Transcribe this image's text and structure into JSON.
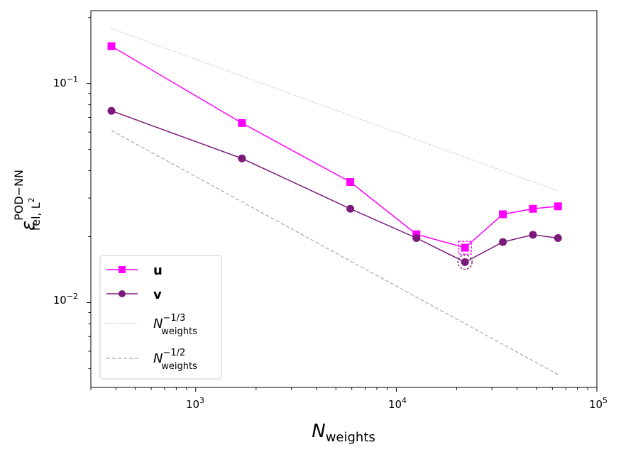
{
  "chart_data": {
    "type": "line",
    "xscale": "log",
    "yscale": "log",
    "xlim": [
      300,
      100000
    ],
    "ylim": [
      0.0041,
      0.215
    ],
    "xticks": [
      {
        "value": 1000,
        "base": "10",
        "exp": "3"
      },
      {
        "value": 10000,
        "base": "10",
        "exp": "4"
      },
      {
        "value": 100000,
        "base": "10",
        "exp": "5"
      }
    ],
    "yticks": [
      {
        "value": 0.1,
        "base": "10",
        "exp": "−1"
      },
      {
        "value": 0.01,
        "base": "10",
        "exp": "−2"
      }
    ],
    "xlabel": {
      "main": "N",
      "sub": "weights"
    },
    "ylabel": {
      "main": "ε",
      "sup": "POD−NN",
      "sub": "rel, L",
      "subsup": "2"
    },
    "series": [
      {
        "name": "u",
        "color": "#ff00ff",
        "marker": "square",
        "linestyle": "solid",
        "x": [
          380,
          1700,
          5900,
          12600,
          22000,
          34000,
          48000,
          64000
        ],
        "y": [
          0.148,
          0.066,
          0.0355,
          0.0205,
          0.0178,
          0.0253,
          0.0268,
          0.0275
        ]
      },
      {
        "name": "v",
        "color": "#7b1a7b",
        "marker": "circle",
        "linestyle": "solid",
        "x": [
          380,
          1700,
          5900,
          12600,
          22000,
          34000,
          48000,
          64000
        ],
        "y": [
          0.075,
          0.0455,
          0.0268,
          0.0197,
          0.0153,
          0.0189,
          0.0204,
          0.0197
        ]
      },
      {
        "name": "N_weights^-1/3",
        "color": "#b0b0b0",
        "marker": "none",
        "linestyle": "dotted",
        "x": [
          380,
          64000
        ],
        "y": [
          0.178,
          0.0323
        ]
      },
      {
        "name": "N_weights^-1/2",
        "color": "#a8a8a8",
        "marker": "none",
        "linestyle": "dashed",
        "x": [
          380,
          64000
        ],
        "y": [
          0.061,
          0.0047
        ]
      }
    ],
    "highlights": [
      {
        "series": "u",
        "x": 22000,
        "y": 0.0178,
        "marker": "square"
      },
      {
        "series": "v",
        "x": 22000,
        "y": 0.0153,
        "marker": "circle"
      }
    ],
    "legend": {
      "placement": "lower-left",
      "entries": [
        {
          "series": "u",
          "label": "u",
          "bold": true
        },
        {
          "series": "v",
          "label": "v",
          "bold": true
        },
        {
          "series": "N_weights^-1/3",
          "label_main": "N",
          "label_sub": "weights",
          "label_sup": "−1/3"
        },
        {
          "series": "N_weights^-1/2",
          "label_main": "N",
          "label_sub": "weights",
          "label_sup": "−1/2"
        }
      ]
    }
  }
}
